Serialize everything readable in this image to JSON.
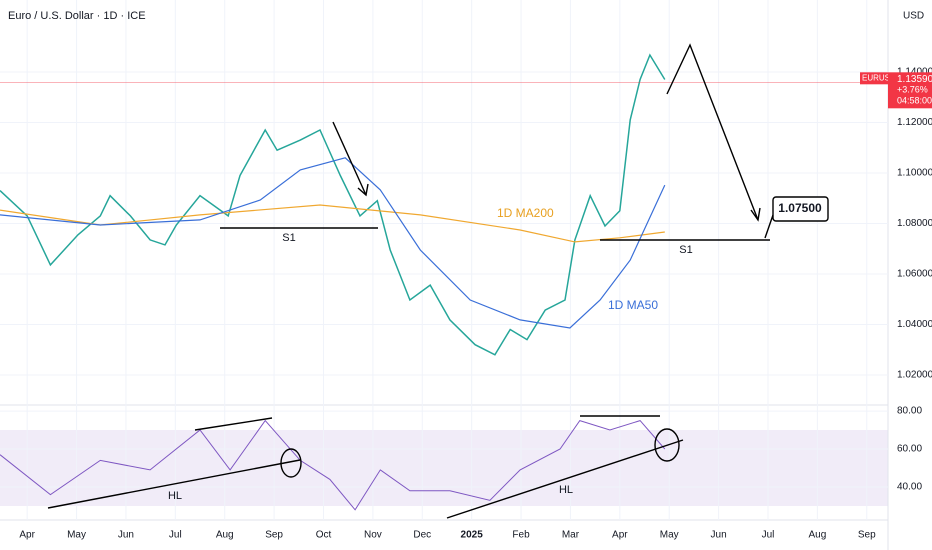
{
  "chart_data": {
    "type": "line",
    "title": "Euro / U.S. Dollar · 1D · ICE",
    "currency": "USD",
    "symbol": "EURUSD",
    "last_price": {
      "value": 1.1359,
      "label": "1.13590"
    },
    "change": "+3.76%",
    "countdown": "04:58:00",
    "xlim": [
      -0.55,
      17.43
    ],
    "xticks": [
      {
        "value": 0,
        "label": "Apr"
      },
      {
        "value": 1,
        "label": "May"
      },
      {
        "value": 2,
        "label": "Jun"
      },
      {
        "value": 3,
        "label": "Jul"
      },
      {
        "value": 4,
        "label": "Aug"
      },
      {
        "value": 5,
        "label": "Sep"
      },
      {
        "value": 6,
        "label": "Oct"
      },
      {
        "value": 7,
        "label": "Nov"
      },
      {
        "value": 8,
        "label": "Dec"
      },
      {
        "value": 9,
        "label": "2025"
      },
      {
        "value": 10,
        "label": "Feb"
      },
      {
        "value": 11,
        "label": "Mar"
      },
      {
        "value": 12,
        "label": "Apr"
      },
      {
        "value": 13,
        "label": "May"
      },
      {
        "value": 14,
        "label": "Jun"
      },
      {
        "value": 15,
        "label": "Jul"
      },
      {
        "value": 16,
        "label": "Aug"
      },
      {
        "value": 17,
        "label": "Sep"
      }
    ],
    "ylim": [
      1.0081,
      1.1685
    ],
    "yticks": [
      {
        "value": 1.02,
        "label": "1.02000"
      },
      {
        "value": 1.04,
        "label": "1.04000"
      },
      {
        "value": 1.06,
        "label": "1.06000"
      },
      {
        "value": 1.08,
        "label": "1.08000"
      },
      {
        "value": 1.1,
        "label": "1.10000"
      },
      {
        "value": 1.12,
        "label": "1.12000"
      },
      {
        "value": 1.14,
        "label": "1.14000"
      }
    ],
    "series": [
      {
        "name": "EURUSD",
        "color": "#26a69a",
        "x": [
          -0.55,
          0,
          0.47,
          1.03,
          1.48,
          1.68,
          2.09,
          2.49,
          2.79,
          3.02,
          3.5,
          4.07,
          4.31,
          4.82,
          5.06,
          5.53,
          5.93,
          6.34,
          6.74,
          7.09,
          7.35,
          7.75,
          8.16,
          8.56,
          9.07,
          9.47,
          9.78,
          10.12,
          10.49,
          10.89,
          11.09,
          11.4,
          11.7,
          12.0,
          12.21,
          12.41,
          12.61,
          12.91
        ],
        "values": [
          1.093,
          1.083,
          1.0636,
          1.0755,
          1.083,
          1.091,
          1.083,
          1.0735,
          1.0715,
          1.0794,
          1.091,
          1.083,
          1.099,
          1.117,
          1.109,
          1.113,
          1.117,
          1.099,
          1.083,
          1.089,
          1.0695,
          1.0497,
          1.0556,
          1.0418,
          1.032,
          1.028,
          1.038,
          1.034,
          1.0457,
          1.0497,
          1.0735,
          1.091,
          1.079,
          1.085,
          1.121,
          1.137,
          1.1467,
          1.137
        ]
      },
      {
        "name": "1D MA200",
        "color": "#f0a830",
        "x": [
          -0.55,
          1.48,
          3.5,
          5.93,
          7.96,
          9.98,
          11.09,
          12.0,
          12.91
        ],
        "values": [
          1.0853,
          1.0794,
          1.0834,
          1.0873,
          1.0834,
          1.0774,
          1.0727,
          1.0743,
          1.0766
        ]
      },
      {
        "name": "1D MA50",
        "color": "#3a6fd8",
        "x": [
          -0.55,
          1.48,
          3.5,
          4.72,
          5.53,
          6.44,
          7.15,
          7.96,
          8.97,
          9.98,
          10.99,
          11.6,
          12.21,
          12.91
        ],
        "values": [
          1.0834,
          1.0794,
          1.0814,
          1.0893,
          1.1012,
          1.106,
          1.0933,
          1.0695,
          1.0497,
          1.0418,
          1.0386,
          1.0497,
          1.0655,
          1.0952
        ]
      }
    ],
    "rsi": {
      "ylim": [
        22.6,
        83.2
      ],
      "yticks": [
        {
          "value": 40,
          "label": "40.00"
        },
        {
          "value": 60,
          "label": "60.00"
        },
        {
          "value": 80,
          "label": "80.00"
        }
      ],
      "color": "#7e57c2",
      "x": [
        -0.55,
        0.47,
        1.48,
        2.49,
        3.5,
        4.11,
        4.82,
        5.53,
        6.13,
        6.64,
        7.15,
        7.75,
        8.56,
        9.37,
        9.98,
        10.79,
        11.19,
        11.8,
        12.41,
        12.91
      ],
      "values": [
        57,
        36,
        54,
        49,
        70,
        49,
        75,
        54,
        44,
        28,
        49,
        38,
        38,
        33,
        49,
        60,
        75,
        70,
        75,
        60
      ]
    },
    "annotations": {
      "s1_left": "S1",
      "s1_right": "S1",
      "hl_left": "HL",
      "hl_right": "HL",
      "target": "1.07500"
    }
  }
}
